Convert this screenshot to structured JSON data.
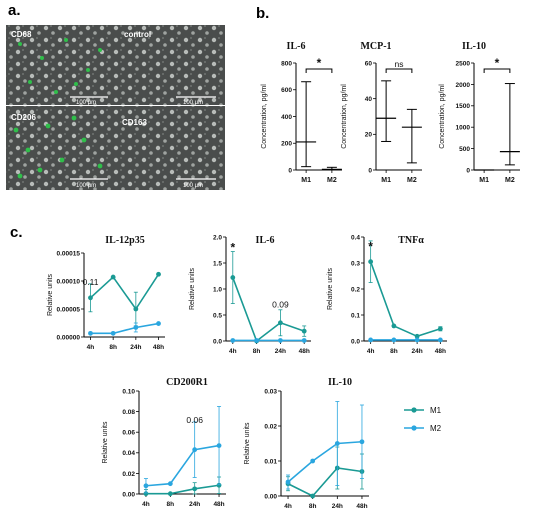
{
  "panel_letters": {
    "a": "a.",
    "b": "b.",
    "c": "c."
  },
  "micrographs": [
    {
      "label": "CD68",
      "scale": "100 μm",
      "green": true
    },
    {
      "label": "control",
      "scale": "100 μm",
      "green": false
    },
    {
      "label": "CD206",
      "scale": "100 μm",
      "green": true
    },
    {
      "label": "CD163",
      "scale": "100 μm",
      "green": false
    }
  ],
  "colors": {
    "M1": "#1a9a94",
    "M2": "#2aa6df",
    "axis": "#000000",
    "image_bg": "#4a4d4c"
  },
  "legend": {
    "m1": "M1",
    "m2": "M2"
  },
  "chart_data": [
    {
      "id": "b-il6",
      "type": "line",
      "title": "IL-6",
      "ylabel": "Concentration, pg/ml",
      "categories": [
        "M1",
        "M2"
      ],
      "ylim": [
        0,
        800
      ],
      "yticks": [
        "0",
        "200",
        "400",
        "600",
        "800"
      ],
      "median": [
        210,
        5
      ],
      "low": [
        25,
        0
      ],
      "high": [
        660,
        20
      ],
      "significance": "*"
    },
    {
      "id": "b-mcp1",
      "type": "line",
      "title": "MCP-1",
      "ylabel": "Concentration, pg/ml",
      "categories": [
        "M1",
        "M2"
      ],
      "ylim": [
        0,
        60
      ],
      "yticks": [
        "0",
        "20",
        "40",
        "60"
      ],
      "median": [
        29,
        24
      ],
      "low": [
        16,
        4
      ],
      "high": [
        50,
        34
      ],
      "significance": "ns"
    },
    {
      "id": "b-il10",
      "type": "line",
      "title": "IL-10",
      "ylabel": "Concentration, pg/ml",
      "categories": [
        "M1",
        "M2"
      ],
      "ylim": [
        0,
        2500
      ],
      "yticks": [
        "0",
        "500",
        "1000",
        "1500",
        "2000",
        "2500"
      ],
      "median": [
        0,
        430
      ],
      "low": [
        0,
        120
      ],
      "high": [
        0,
        2020
      ],
      "significance": "*"
    },
    {
      "id": "c-il12p35",
      "type": "line",
      "title": "IL-12p35",
      "ylabel": "Relative units",
      "categories": [
        "4h",
        "8h",
        "24h",
        "48h"
      ],
      "ylim": [
        0,
        0.00015
      ],
      "yticks": [
        "0.00000",
        "0.00005",
        "0.00010",
        "0.00015"
      ],
      "series": [
        {
          "name": "M1",
          "values": [
            7e-05,
            0.000107,
            5e-05,
            0.000112
          ],
          "err": [
            2.5e-05,
            0,
            3e-05,
            0
          ]
        },
        {
          "name": "M2",
          "values": [
            6.5e-06,
            6.5e-06,
            1.7e-05,
            2.4e-05
          ],
          "err": [
            0,
            0,
            8e-06,
            0
          ]
        }
      ],
      "annotations": [
        {
          "text": "0.11",
          "x": 0,
          "y": 9.8e-05
        }
      ]
    },
    {
      "id": "c-il6",
      "type": "line",
      "title": "IL-6",
      "ylabel": "Relative units",
      "categories": [
        "4h",
        "8h",
        "24h",
        "48h"
      ],
      "ylim": [
        0,
        2.0
      ],
      "yticks": [
        "0.0",
        "0.5",
        "1.0",
        "1.5",
        "2.0"
      ],
      "series": [
        {
          "name": "M1",
          "values": [
            1.22,
            0.0,
            0.35,
            0.19
          ],
          "err": [
            0.5,
            0,
            0.25,
            0.1
          ]
        },
        {
          "name": "M2",
          "values": [
            0.01,
            0.01,
            0.01,
            0.01
          ],
          "err": [
            0,
            0,
            0,
            0
          ]
        }
      ],
      "annotations": [
        {
          "text": "*",
          "x": 0,
          "y": 1.78
        },
        {
          "text": "0.09",
          "x": 2,
          "y": 0.7
        }
      ]
    },
    {
      "id": "c-tnfa",
      "type": "line",
      "title": "TNFα",
      "ylabel": "Relative units",
      "categories": [
        "4h",
        "8h",
        "24h",
        "48h"
      ],
      "ylim": [
        0,
        0.4
      ],
      "yticks": [
        "0.0",
        "0.1",
        "0.2",
        "0.3",
        "0.4"
      ],
      "series": [
        {
          "name": "M1",
          "values": [
            0.305,
            0.058,
            0.018,
            0.047
          ],
          "err": [
            0.08,
            0,
            0,
            0.008
          ]
        },
        {
          "name": "M2",
          "values": [
            0.004,
            0.004,
            0.004,
            0.004
          ],
          "err": [
            0,
            0,
            0,
            0
          ]
        }
      ],
      "annotations": [
        {
          "text": "*",
          "x": 0,
          "y": 0.36
        }
      ]
    },
    {
      "id": "c-cd200r1",
      "type": "line",
      "title": "CD200R1",
      "ylabel": "Relative units",
      "categories": [
        "4h",
        "8h",
        "24h",
        "48h"
      ],
      "ylim": [
        0,
        0.1
      ],
      "yticks": [
        "0.00",
        "0.02",
        "0.04",
        "0.06",
        "0.08",
        "0.10"
      ],
      "series": [
        {
          "name": "M1",
          "values": [
            0.0003,
            0.0003,
            0.005,
            0.0085
          ],
          "err": [
            0.004,
            0,
            0.006,
            0.008
          ]
        },
        {
          "name": "M2",
          "values": [
            0.008,
            0.01,
            0.043,
            0.047
          ],
          "err": [
            0.007,
            0,
            0.027,
            0.038
          ]
        }
      ],
      "annotations": [
        {
          "text": "0.06",
          "x": 2,
          "y": 0.072
        }
      ]
    },
    {
      "id": "c-il10",
      "type": "line",
      "title": "IL-10",
      "ylabel": "Relative units",
      "categories": [
        "4h",
        "8h",
        "24h",
        "48h"
      ],
      "ylim": [
        0,
        0.03
      ],
      "yticks": [
        "0.00",
        "0.01",
        "0.02",
        "0.03"
      ],
      "series": [
        {
          "name": "M1",
          "values": [
            0.0035,
            0.0,
            0.008,
            0.007
          ],
          "err": [
            0.002,
            0,
            0.006,
            0.005
          ]
        },
        {
          "name": "M2",
          "values": [
            0.004,
            0.01,
            0.015,
            0.0155
          ],
          "err": [
            0.002,
            0,
            0.012,
            0.0105
          ]
        }
      ],
      "annotations": []
    }
  ]
}
